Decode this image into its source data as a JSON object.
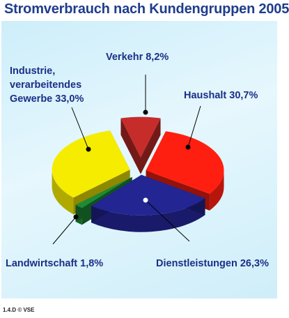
{
  "chart_data": {
    "type": "pie",
    "title": "Stromverbrauch nach Kundengruppen 2005",
    "unit": "%",
    "slices": [
      {
        "name": "Verkehr",
        "value": 8.2,
        "display": "8,2%",
        "color": "#c62c2a"
      },
      {
        "name": "Haushalt",
        "value": 30.7,
        "display": "30,7%",
        "color": "#ff1f10"
      },
      {
        "name": "Dienstleistungen",
        "value": 26.3,
        "display": "26,3%",
        "color": "#232593"
      },
      {
        "name": "Landwirtschaft",
        "value": 1.8,
        "display": "1,8%",
        "color": "#1e8a35"
      },
      {
        "name": "Industrie, verarbeitendes Gewerbe",
        "value": 33.0,
        "display": "33,0%",
        "color": "#f5ec00"
      }
    ],
    "labels": {
      "verkehr": "Verkehr 8,2%",
      "haushalt": "Haushalt 30,7%",
      "dienstleistungen": "Dienstleistungen 26,3%",
      "landwirtschaft": "Landwirtschaft 1,8%",
      "industrie_line1": "Industrie,",
      "industrie_line2": "verarbeitendes",
      "industrie_line3": "Gewerbe 33,0%"
    }
  },
  "source": "1.4.D © VSE"
}
